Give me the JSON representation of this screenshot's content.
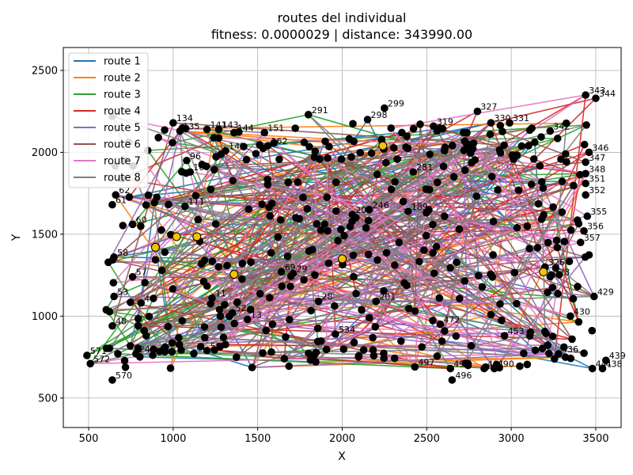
{
  "chart_data": {
    "type": "line",
    "title_line1": "routes del individual",
    "title_line2": "fitness: 0.0000029 | distance: 343990.00",
    "xlabel": "X",
    "ylabel": "Y",
    "xlim": [
      350,
      3650
    ],
    "ylim": [
      320,
      2640
    ],
    "xticks": [
      500,
      1000,
      1500,
      2000,
      2500,
      3000,
      3500
    ],
    "yticks": [
      500,
      1000,
      1500,
      2000,
      2500
    ],
    "grid": true,
    "legend_position": "upper-left",
    "series": [
      {
        "name": "route 1",
        "color": "#1f77b4"
      },
      {
        "name": "route 2",
        "color": "#ff7f0e"
      },
      {
        "name": "route 3",
        "color": "#2ca02c"
      },
      {
        "name": "route 4",
        "color": "#d62728"
      },
      {
        "name": "route 5",
        "color": "#9467bd"
      },
      {
        "name": "route 6",
        "color": "#8c564b"
      },
      {
        "name": "route 7",
        "color": "#e377c2"
      },
      {
        "name": "route 8",
        "color": "#7f7f7f"
      }
    ],
    "depots": [
      {
        "x": 895,
        "y": 1420
      },
      {
        "x": 1020,
        "y": 1485
      },
      {
        "x": 1140,
        "y": 1485
      },
      {
        "x": 1360,
        "y": 1255
      },
      {
        "x": 2000,
        "y": 1350
      },
      {
        "x": 2240,
        "y": 2040
      },
      {
        "x": 3190,
        "y": 1270
      }
    ],
    "labeled_nodes": [
      {
        "label": "134",
        "x": 1000,
        "y": 2180
      },
      {
        "label": "135",
        "x": 1040,
        "y": 2130
      },
      {
        "label": "141",
        "x": 1200,
        "y": 2140
      },
      {
        "label": "143",
        "x": 1270,
        "y": 2140
      },
      {
        "label": "144",
        "x": 1360,
        "y": 2120
      },
      {
        "label": "145",
        "x": 1310,
        "y": 2010
      },
      {
        "label": "151",
        "x": 1540,
        "y": 2120
      },
      {
        "label": "162",
        "x": 1560,
        "y": 2040
      },
      {
        "label": "291",
        "x": 1800,
        "y": 2230
      },
      {
        "label": "299",
        "x": 2250,
        "y": 2270
      },
      {
        "label": "298",
        "x": 2150,
        "y": 2200
      },
      {
        "label": "319",
        "x": 2540,
        "y": 2160
      },
      {
        "label": "327",
        "x": 2800,
        "y": 2250
      },
      {
        "label": "330",
        "x": 2880,
        "y": 2180
      },
      {
        "label": "331",
        "x": 2990,
        "y": 2180
      },
      {
        "label": "342",
        "x": 3230,
        "y": 2130
      },
      {
        "label": "343",
        "x": 3440,
        "y": 2350
      },
      {
        "label": "344",
        "x": 3500,
        "y": 2330
      },
      {
        "label": "346",
        "x": 3460,
        "y": 2000
      },
      {
        "label": "347",
        "x": 3440,
        "y": 1940
      },
      {
        "label": "348",
        "x": 3440,
        "y": 1870
      },
      {
        "label": "351",
        "x": 3440,
        "y": 1810
      },
      {
        "label": "352",
        "x": 3440,
        "y": 1740
      },
      {
        "label": "355",
        "x": 3450,
        "y": 1610
      },
      {
        "label": "356",
        "x": 3430,
        "y": 1520
      },
      {
        "label": "357",
        "x": 3410,
        "y": 1450
      },
      {
        "label": "326",
        "x": 3200,
        "y": 1300
      },
      {
        "label": "328",
        "x": 3230,
        "y": 1240
      },
      {
        "label": "429",
        "x": 3490,
        "y": 1120
      },
      {
        "label": "430",
        "x": 3350,
        "y": 1000
      },
      {
        "label": "436",
        "x": 3280,
        "y": 770
      },
      {
        "label": "439",
        "x": 3560,
        "y": 730
      },
      {
        "label": "441",
        "x": 3480,
        "y": 680
      },
      {
        "label": "438",
        "x": 3540,
        "y": 680
      },
      {
        "label": "453",
        "x": 2960,
        "y": 880
      },
      {
        "label": "472",
        "x": 2580,
        "y": 950
      },
      {
        "label": "491",
        "x": 2840,
        "y": 680
      },
      {
        "label": "490",
        "x": 2900,
        "y": 680
      },
      {
        "label": "493",
        "x": 2640,
        "y": 680
      },
      {
        "label": "496",
        "x": 2650,
        "y": 610
      },
      {
        "label": "497",
        "x": 2430,
        "y": 690
      },
      {
        "label": "281",
        "x": 2420,
        "y": 1880
      },
      {
        "label": "189",
        "x": 2390,
        "y": 1640
      },
      {
        "label": "208",
        "x": 2060,
        "y": 1620
      },
      {
        "label": "571",
        "x": 490,
        "y": 760
      },
      {
        "label": "572",
        "x": 510,
        "y": 710
      },
      {
        "label": "570",
        "x": 640,
        "y": 610
      },
      {
        "label": "48",
        "x": 640,
        "y": 940
      },
      {
        "label": "53",
        "x": 650,
        "y": 1120
      },
      {
        "label": "58",
        "x": 650,
        "y": 1360
      },
      {
        "label": "57",
        "x": 760,
        "y": 1240
      },
      {
        "label": "60",
        "x": 760,
        "y": 1560
      },
      {
        "label": "61",
        "x": 640,
        "y": 1680
      },
      {
        "label": "62",
        "x": 660,
        "y": 1740
      },
      {
        "label": "28",
        "x": 640,
        "y": 2220
      },
      {
        "label": "24",
        "x": 780,
        "y": 770
      },
      {
        "label": "44",
        "x": 810,
        "y": 1080
      },
      {
        "label": "11",
        "x": 1230,
        "y": 1110
      },
      {
        "label": "96",
        "x": 1080,
        "y": 1950
      },
      {
        "label": "100",
        "x": 1100,
        "y": 1880
      },
      {
        "label": "111",
        "x": 1070,
        "y": 1670
      },
      {
        "label": "52",
        "x": 1350,
        "y": 1020
      },
      {
        "label": "13",
        "x": 1440,
        "y": 980
      },
      {
        "label": "59",
        "x": 1200,
        "y": 790
      },
      {
        "label": "69",
        "x": 1640,
        "y": 1270
      },
      {
        "label": "29",
        "x": 1710,
        "y": 1260
      },
      {
        "label": "28",
        "x": 1860,
        "y": 1090
      },
      {
        "label": "534",
        "x": 1960,
        "y": 890
      },
      {
        "label": "201",
        "x": 2200,
        "y": 1090
      },
      {
        "label": "246",
        "x": 2160,
        "y": 1650
      }
    ]
  }
}
